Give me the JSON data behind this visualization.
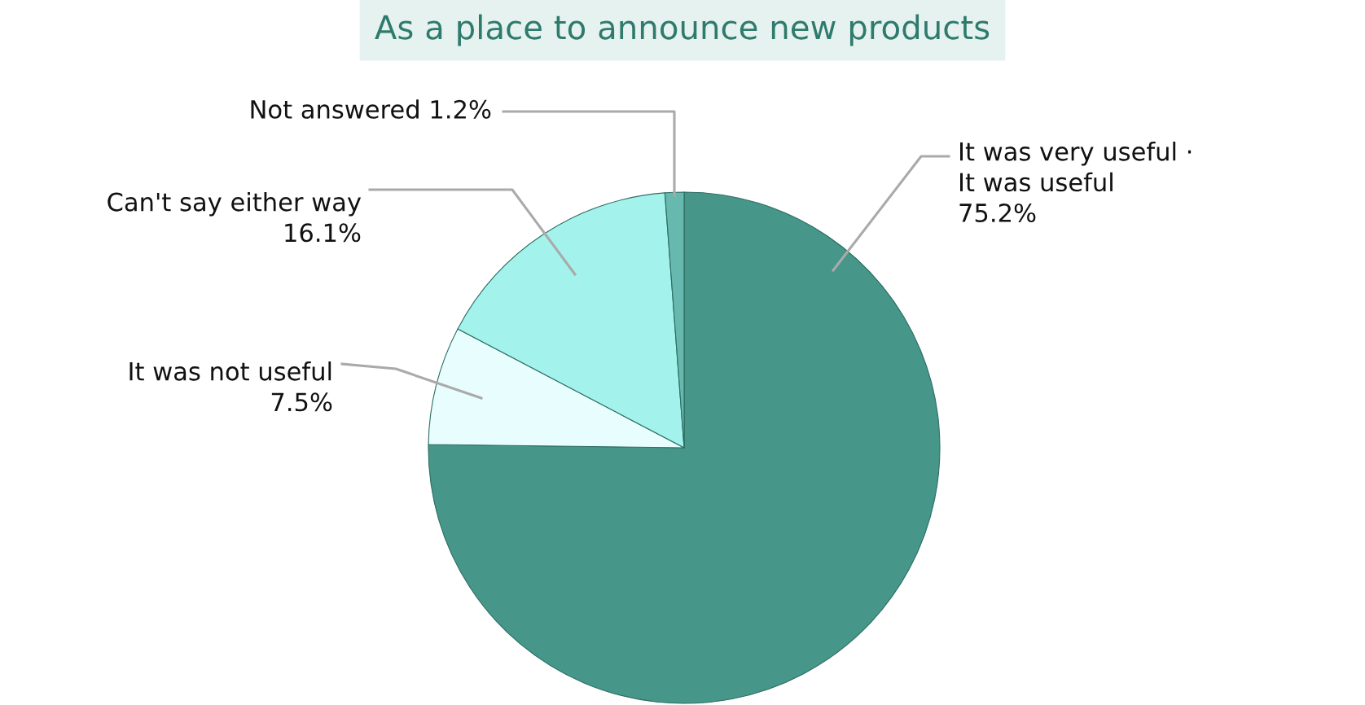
{
  "chart_data": {
    "type": "pie",
    "title": "As a place to announce new products",
    "categories": [
      "It was very useful ·\nIt was useful",
      "It was not useful",
      "Can't say either way",
      "Not answered"
    ],
    "values": [
      75.2,
      7.5,
      16.1,
      1.2
    ],
    "value_labels": [
      "75.2%",
      "7.5%",
      "16.1%",
      "1.2%"
    ],
    "colors": [
      "#46968a",
      "#e8fdfd",
      "#a3f3ec",
      "#67b8ae"
    ],
    "legend": false
  }
}
